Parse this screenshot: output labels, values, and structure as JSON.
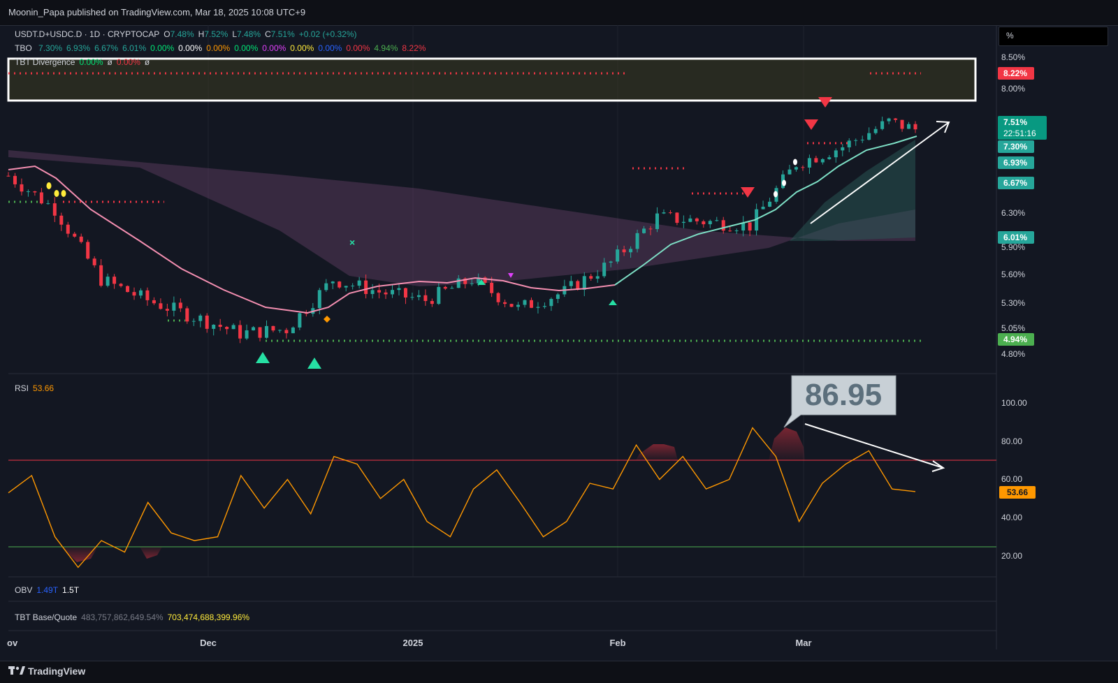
{
  "header": {
    "publisher": "Moonin_Papa published on TradingView.com, Mar 18, 2025 10:08 UTC+9"
  },
  "footer": {
    "brand": "TradingView"
  },
  "scale_box": {
    "label": "%"
  },
  "main_legend": {
    "symbol": "USDT.D+USDC.D · 1D · CRYPTOCAP",
    "o_label": "O",
    "o_value": "7.48%",
    "h_label": "H",
    "h_value": "7.52%",
    "l_label": "L",
    "l_value": "7.48%",
    "c_label": "C",
    "c_value": "7.51%",
    "change": "+0.02 (+0.32%)"
  },
  "tbo_legend": {
    "name": "TBO",
    "values": [
      {
        "text": "7.30%",
        "color": "#26a69a"
      },
      {
        "text": "6.93%",
        "color": "#26a69a"
      },
      {
        "text": "6.67%",
        "color": "#26a69a"
      },
      {
        "text": "6.01%",
        "color": "#26a69a"
      },
      {
        "text": "0.00%",
        "color": "#00e676"
      },
      {
        "text": "0.00%",
        "color": "#ffffff"
      },
      {
        "text": "0.00%",
        "color": "#ff9800"
      },
      {
        "text": "0.00%",
        "color": "#00e676"
      },
      {
        "text": "0.00%",
        "color": "#e040fb"
      },
      {
        "text": "0.00%",
        "color": "#ffeb3b"
      },
      {
        "text": "0.00%",
        "color": "#2962ff"
      },
      {
        "text": "0.00%",
        "color": "#f23645"
      },
      {
        "text": "4.94%",
        "color": "#4caf50"
      },
      {
        "text": "8.22%",
        "color": "#f23645"
      }
    ]
  },
  "divergence_legend": {
    "name": "TBT Divergence",
    "v1": "0.00%",
    "s1": "ø",
    "v2": "0.00%",
    "s2": "ø"
  },
  "price_axis": {
    "ticks": [
      "8.50%",
      "8.00%",
      "6.30%",
      "5.90%",
      "5.60%",
      "5.30%",
      "5.05%",
      "4.80%"
    ],
    "badges": [
      {
        "text": "8.22%",
        "bg": "#f23645"
      },
      {
        "text": "7.51%",
        "sub": "22:51:16",
        "bg": "#089981"
      },
      {
        "text": "7.30%",
        "bg": "#26a69a"
      },
      {
        "text": "6.93%",
        "bg": "#26a69a"
      },
      {
        "text": "6.67%",
        "bg": "#26a69a"
      },
      {
        "text": "6.01%",
        "bg": "#26a69a"
      },
      {
        "text": "4.94%",
        "bg": "#4caf50"
      }
    ]
  },
  "rsi": {
    "name": "RSI",
    "value": "53.66",
    "ticks": [
      "100.00",
      "80.00",
      "60.00",
      "40.00",
      "20.00"
    ],
    "badge": "53.66",
    "callout": "86.95"
  },
  "obv": {
    "name": "OBV",
    "v1": "1.49T",
    "v2": "1.5T"
  },
  "base_quote": {
    "name": "TBT Base/Quote",
    "v1": "483,757,862,649.54%",
    "v2": "703,474,688,399.96%"
  },
  "time_axis": {
    "labels": [
      "ov",
      "Dec",
      "2025",
      "Feb",
      "Mar"
    ]
  },
  "chart_data": {
    "type": "line",
    "title": "USDT.D+USDC.D · 1D · CRYPTOCAP",
    "xlabel": "",
    "ylabel": "",
    "price_series_approx": [
      {
        "date": "2024-11-01",
        "close": 6.95
      },
      {
        "date": "2024-11-08",
        "close": 6.55
      },
      {
        "date": "2024-11-15",
        "close": 5.7
      },
      {
        "date": "2024-11-22",
        "close": 5.45
      },
      {
        "date": "2024-11-29",
        "close": 5.25
      },
      {
        "date": "2024-12-06",
        "close": 5.05
      },
      {
        "date": "2024-12-13",
        "close": 5.1
      },
      {
        "date": "2024-12-20",
        "close": 5.7
      },
      {
        "date": "2024-12-27",
        "close": 5.55
      },
      {
        "date": "2025-01-03",
        "close": 5.45
      },
      {
        "date": "2025-01-10",
        "close": 5.7
      },
      {
        "date": "2025-01-17",
        "close": 5.35
      },
      {
        "date": "2025-01-24",
        "close": 5.55
      },
      {
        "date": "2025-01-31",
        "close": 5.9
      },
      {
        "date": "2025-02-07",
        "close": 6.45
      },
      {
        "date": "2025-02-14",
        "close": 6.4
      },
      {
        "date": "2025-02-21",
        "close": 6.35
      },
      {
        "date": "2025-02-28",
        "close": 7.1
      },
      {
        "date": "2025-03-07",
        "close": 7.3
      },
      {
        "date": "2025-03-14",
        "close": 7.6
      },
      {
        "date": "2025-03-18",
        "close": 7.51
      }
    ],
    "rsi_series_approx": [
      53,
      62,
      30,
      14,
      28,
      22,
      48,
      32,
      28,
      30,
      62,
      45,
      60,
      42,
      72,
      68,
      50,
      60,
      38,
      30,
      55,
      65,
      48,
      30,
      38,
      58,
      55,
      78,
      60,
      72,
      55,
      60,
      87,
      72,
      38,
      58,
      68,
      75,
      55,
      53.66
    ],
    "levels": {
      "rsi_overbought": 70,
      "rsi_oversold": 30,
      "resistance": 8.22,
      "support": 4.94
    }
  }
}
